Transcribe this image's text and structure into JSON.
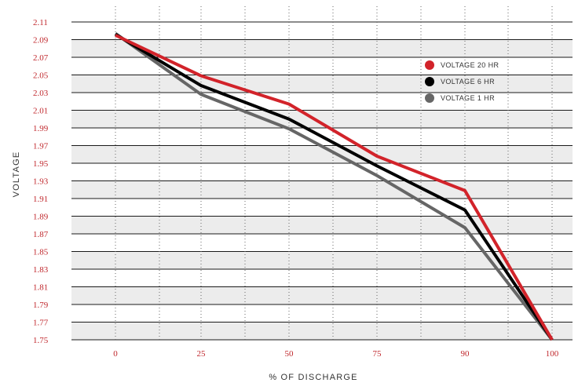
{
  "chart_data": {
    "type": "line",
    "xlabel": "% OF DISCHARGE",
    "ylabel": "VOLTAGE",
    "x_ticks": [
      "0",
      "25",
      "50",
      "75",
      "90",
      "100"
    ],
    "y_ticks": [
      "2.11",
      "2.09",
      "2.07",
      "2.05",
      "2.03",
      "2.01",
      "1.99",
      "1.97",
      "1.95",
      "1.93",
      "1.91",
      "1.89",
      "1.87",
      "1.85",
      "1.83",
      "1.81",
      "1.79",
      "1.77",
      "1.75"
    ],
    "ylim": [
      1.75,
      2.11
    ],
    "legend_position": "top-right",
    "series": [
      {
        "name": "VOLTAGE 20 HR",
        "color": "#d2232a",
        "x": [
          0,
          25,
          50,
          75,
          90,
          100
        ],
        "y": [
          2.095,
          2.049,
          2.017,
          1.958,
          1.919,
          1.75
        ]
      },
      {
        "name": "VOLTAGE 6 HR",
        "color": "#000000",
        "x": [
          0,
          25,
          50,
          75,
          90,
          100
        ],
        "y": [
          2.096,
          2.038,
          2.0,
          1.947,
          1.897,
          1.75
        ]
      },
      {
        "name": "VOLTAGE 1 HR",
        "color": "#666666",
        "x": [
          0,
          25,
          50,
          75,
          90,
          100
        ],
        "y": [
          2.097,
          2.028,
          1.989,
          1.936,
          1.877,
          1.75
        ]
      }
    ]
  }
}
